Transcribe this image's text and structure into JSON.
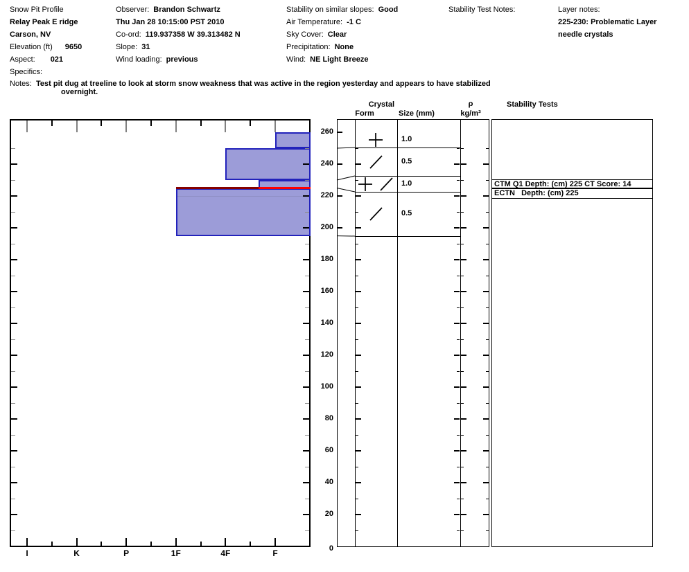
{
  "header": {
    "columns": [
      {
        "lines": [
          {
            "label": "Snow Pit Profile"
          },
          {
            "value": "Relay Peak E ridge"
          },
          {
            "value": "Carson, NV"
          },
          {
            "label": "Elevation (ft)",
            "value": "9650"
          },
          {
            "label": "Aspect:",
            "value": "021"
          },
          {
            "label": "Specifics:"
          }
        ]
      },
      {
        "lines": [
          {
            "label": "Observer:",
            "value": "Brandon Schwartz"
          },
          {
            "value": "Thu Jan 28 10:15:00 PST 2010"
          },
          {
            "label": "Co-ord:",
            "value": "119.937358 W 39.313482 N"
          },
          {
            "label": "Slope:",
            "value": "31"
          },
          {
            "label": "Wind loading:",
            "value": "previous"
          }
        ]
      },
      {
        "lines": [
          {
            "label": "Stability on similar slopes:",
            "value": "Good"
          },
          {
            "label": "Air Temperature:",
            "value": "-1 C"
          },
          {
            "label": "Sky Cover:",
            "value": "Clear"
          },
          {
            "label": "Precipitation:",
            "value": "None"
          },
          {
            "label": "Wind:",
            "value": "NE Light Breeze"
          }
        ]
      },
      {
        "lines": [
          {
            "label": "Stability Test Notes:"
          }
        ]
      },
      {
        "lines": [
          {
            "label": "Layer notes:"
          },
          {
            "value": "225-230: Problematic Layer"
          },
          {
            "value": "needle crystals"
          }
        ]
      }
    ]
  },
  "notes": {
    "label": "Notes:",
    "line1": "Test pit dug at treeline to look at storm snow weakness that was active in the region yesterday and appears to have stabilized",
    "line2": "overnight."
  },
  "chart_data": {
    "type": "bar",
    "chart_kind": "snow-pit-hardness-profile",
    "depth_axis": {
      "unit": "cm",
      "min": 0,
      "max": 260,
      "tick_step": 20,
      "minor_tick_step": 10,
      "labels": [
        260,
        240,
        220,
        200,
        180,
        160,
        140,
        120,
        100,
        80,
        60,
        40,
        20,
        0
      ]
    },
    "hardness_axis": {
      "categories": [
        "I",
        "K",
        "P",
        "1F",
        "4F",
        "F"
      ],
      "order": "hardest-on-left"
    },
    "layers": [
      {
        "top_cm": 260,
        "bottom_cm": 250,
        "hardness": "F",
        "grain_form": "+",
        "grain_size_mm": "1.0"
      },
      {
        "top_cm": 250,
        "bottom_cm": 230,
        "hardness": "4F",
        "grain_form": "/",
        "grain_size_mm": "0.5"
      },
      {
        "top_cm": 230,
        "bottom_cm": 225,
        "hardness": "F+",
        "grain_form": "+ /",
        "grain_size_mm": "1.0"
      },
      {
        "top_cm": 225,
        "bottom_cm": 195,
        "hardness": "1F",
        "grain_form": "/",
        "grain_size_mm": "0.5"
      }
    ],
    "weak_layer": {
      "depth_cm": 225
    },
    "column_headers": {
      "crystal": "Crystal",
      "form": "Form",
      "size": "Size (mm)",
      "rho": "ρ",
      "rho_unit": "kg/m³",
      "stability": "Stability Tests"
    },
    "stability_tests": [
      {
        "text": "CTM Q1 Depth: (cm) 225 CT Score: 14",
        "depth_cm": 225
      },
      {
        "text": "ECTN   Depth: (cm) 225",
        "depth_cm": 225
      }
    ],
    "colors": {
      "bar_fill": "#9c9cd8",
      "bar_border": "#2222bb",
      "weak_layer_dark": "#860000",
      "weak_layer_bright": "#ff0000",
      "top_tick_gray": "#808080",
      "minor_tick_gray": "#8a8a8a"
    }
  }
}
